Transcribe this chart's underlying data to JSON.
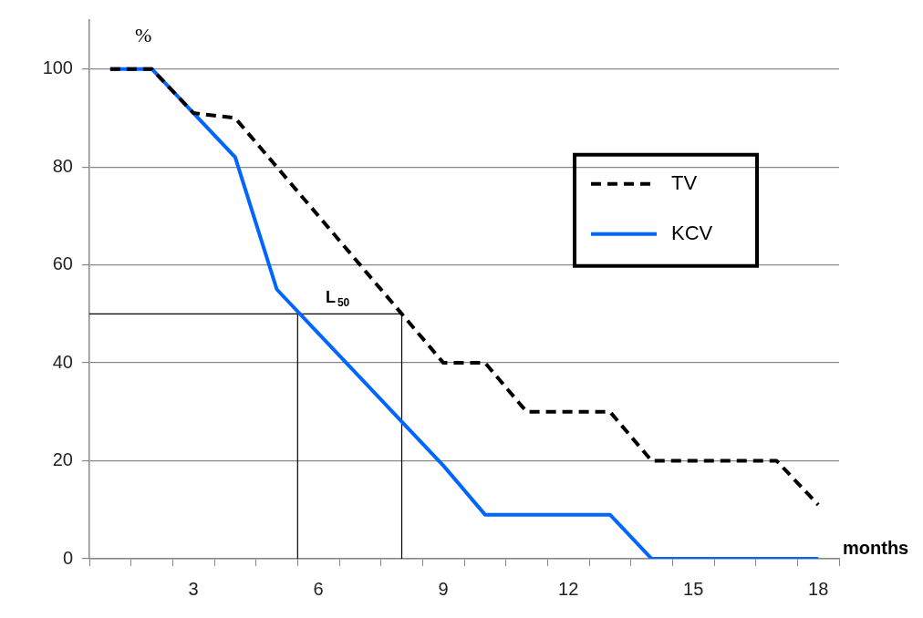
{
  "chart_data": {
    "type": "line",
    "xlabel": "months",
    "ylabel": "%",
    "x": [
      1,
      2,
      3,
      4,
      5,
      6,
      7,
      8,
      9,
      10,
      11,
      12,
      13,
      14,
      15,
      16,
      17,
      18
    ],
    "xlim": [
      0.5,
      18.5
    ],
    "xticks": [
      {
        "value": 0.5,
        "label": null
      },
      {
        "value": 1.5,
        "label": null
      },
      {
        "value": 2.5,
        "label": null
      },
      3,
      {
        "value": 3.5,
        "label": null
      },
      {
        "value": 4.5,
        "label": null
      },
      {
        "value": 5.5,
        "label": null
      },
      6,
      {
        "value": 6.5,
        "label": null
      },
      {
        "value": 7.5,
        "label": null
      },
      {
        "value": 8.5,
        "label": null
      },
      9,
      {
        "value": 9.5,
        "label": null
      },
      {
        "value": 10.5,
        "label": null
      },
      {
        "value": 11.5,
        "label": null
      },
      12,
      {
        "value": 12.5,
        "label": null
      },
      {
        "value": 13.5,
        "label": null
      },
      {
        "value": 14.5,
        "label": null
      },
      15,
      {
        "value": 15.5,
        "label": null
      },
      {
        "value": 16.5,
        "label": null
      },
      {
        "value": 17.5,
        "label": null
      },
      18,
      {
        "value": 18.5,
        "label": null
      }
    ],
    "ylim": [
      0,
      110
    ],
    "yticks": [
      0,
      20,
      40,
      60,
      80,
      100
    ],
    "grid": "y",
    "legend": "right",
    "marker": "none",
    "series": [
      {
        "name": "TV",
        "color": "#000000",
        "line_style": "dashed",
        "values": [
          100,
          100,
          91,
          90,
          80,
          70,
          60,
          50,
          40,
          40,
          30,
          30,
          30,
          20,
          20,
          20,
          20,
          11
        ]
      },
      {
        "name": "KCV",
        "color": "#0066ff",
        "line_style": "solid",
        "values": [
          100,
          100,
          91,
          82,
          55,
          46,
          37,
          28,
          19,
          9,
          9,
          9,
          9,
          0,
          0,
          0,
          0,
          0
        ]
      },
      {
        "type": "line",
        "color": "#000000",
        "line_style": "solid",
        "x": [
          0.5,
          8,
          8
        ],
        "values": [
          50,
          50,
          0
        ]
      },
      {
        "type": "line",
        "color": "#000000",
        "line_style": "solid",
        "x": [
          5.5,
          5.5
        ],
        "values": [
          0,
          50
        ]
      }
    ],
    "annotations": [
      "L$_{50}$"
    ]
  }
}
